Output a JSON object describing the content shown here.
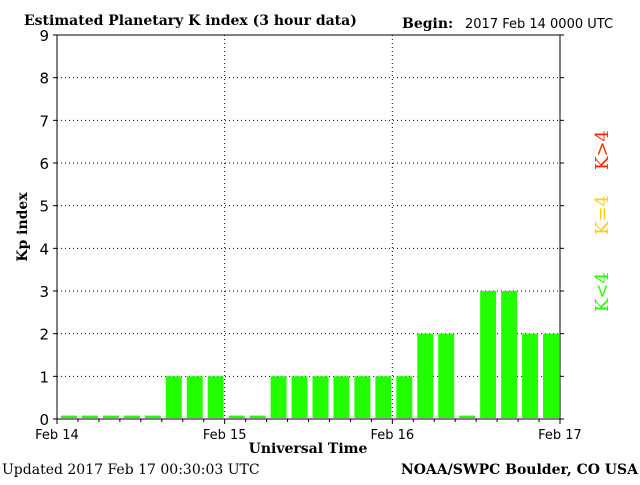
{
  "header": {
    "title": "Estimated Planetary K index (3 hour data)",
    "begin_label": "Begin:",
    "begin_value": "2017 Feb 14 0000 UTC"
  },
  "footer": {
    "updated": "Updated 2017 Feb 17 00:30:03 UTC",
    "source": "NOAA/SWPC Boulder, CO USA"
  },
  "legend": {
    "k_gt4": "K>4",
    "k_eq4": "K=4",
    "k_lt4": "K<4"
  },
  "colors": {
    "bar": "#22ff00",
    "k_gt4": "#ff2a00",
    "k_eq4": "#ffd000",
    "k_lt4": "#22ff00",
    "axis": "#000000"
  },
  "chart_data": {
    "type": "bar",
    "title": "Estimated Planetary K index (3 hour data)",
    "xlabel": "Universal Time",
    "ylabel": "Kp index",
    "ylim": [
      0,
      9
    ],
    "y_ticks": [
      "0",
      "1",
      "2",
      "3",
      "4",
      "5",
      "6",
      "7",
      "8",
      "9"
    ],
    "x_tick_labels": [
      "Feb 14",
      "Feb 15",
      "Feb 16",
      "Feb 17"
    ],
    "grid": "dotted",
    "series": [
      {
        "values": [
          0,
          0,
          0,
          0,
          0,
          1,
          1,
          1,
          0,
          0,
          1,
          1,
          1,
          1,
          1,
          1,
          1,
          2,
          2,
          0,
          3,
          3,
          2,
          2
        ]
      }
    ]
  }
}
